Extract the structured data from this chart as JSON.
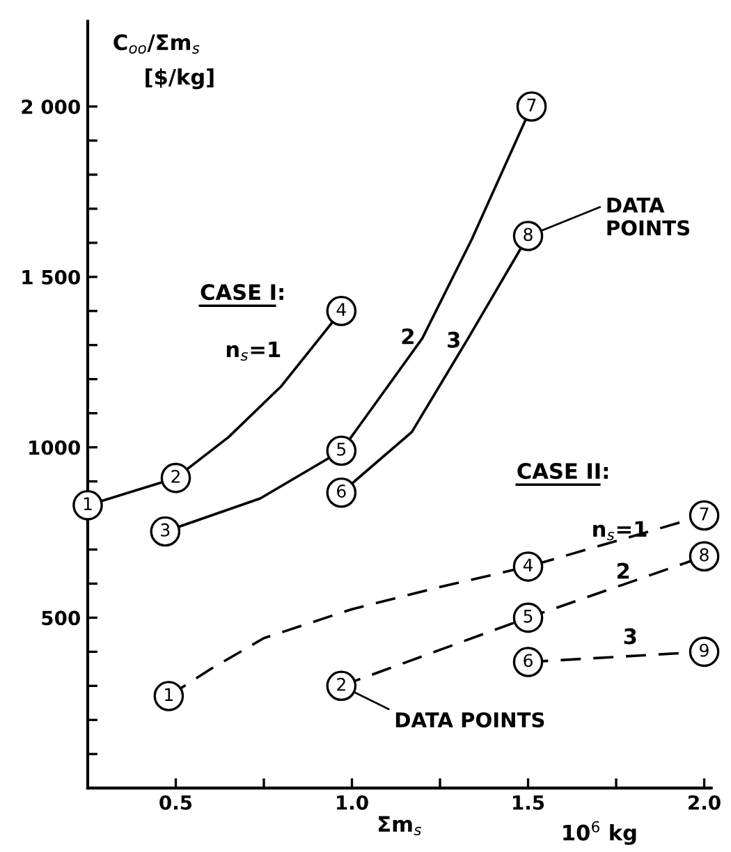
{
  "chart_data": {
    "type": "line",
    "ylabel": "C$_{oo}$/Σm$_{s}$",
    "xlabel": "Σm$_{s}$",
    "xlim": [
      0.25,
      2.02
    ],
    "ylim": [
      0,
      2250
    ],
    "xticks": [
      0.5,
      {
        "value": 0.75,
        "label": null
      },
      {
        "value": 1,
        "label": "1.0"
      },
      {
        "value": 1.25,
        "label": null
      },
      1.5,
      {
        "value": 1.75,
        "label": null
      },
      {
        "value": 2,
        "label": "2.0"
      }
    ],
    "yticks": [
      {
        "value": 100,
        "label": null
      },
      {
        "value": 200,
        "label": null
      },
      {
        "value": 300,
        "label": null
      },
      {
        "value": 400,
        "label": null
      },
      500,
      {
        "value": 600,
        "label": null
      },
      {
        "value": 700,
        "label": null
      },
      {
        "value": 800,
        "label": null
      },
      {
        "value": 900,
        "label": null
      },
      1000,
      {
        "value": 1100,
        "label": null
      },
      {
        "value": 1200,
        "label": null
      },
      {
        "value": 1300,
        "label": null
      },
      {
        "value": 1400,
        "label": null
      },
      {
        "value": 1500,
        "label": "1 500"
      },
      {
        "value": 1600,
        "label": null
      },
      {
        "value": 1700,
        "label": null
      },
      {
        "value": 1800,
        "label": null
      },
      {
        "value": 1900,
        "label": null
      },
      {
        "value": 2000,
        "label": "2 000"
      }
    ],
    "grid": false,
    "legend": false,
    "series": [
      {
        "name": "n$_{s}$=1",
        "color": "#000000",
        "line_style": "solid",
        "marker": "none",
        "x": [
          0.25,
          0.5,
          0.65,
          0.8,
          0.97
        ],
        "values": [
          830,
          910,
          1030,
          1180,
          1400
        ]
      },
      {
        "name": "2",
        "color": "#000000",
        "line_style": "solid",
        "marker": "none",
        "x": [
          0.47,
          0.74,
          0.97,
          1.2,
          1.34,
          1.51
        ],
        "values": [
          753,
          850,
          990,
          1320,
          1610,
          2000
        ]
      },
      {
        "name": "3",
        "color": "#000000",
        "line_style": "solid",
        "marker": "none",
        "x": [
          0.97,
          1.17,
          1.33,
          1.5
        ],
        "values": [
          867,
          1045,
          1320,
          1620
        ]
      },
      {
        "name": "n$_{s}$=1",
        "color": "#000000",
        "line_style": "dashed",
        "marker": "none",
        "x": [
          0.48,
          0.6,
          0.75,
          1.0,
          1.25,
          1.5,
          2.0
        ],
        "values": [
          270,
          350,
          440,
          525,
          590,
          650,
          800
        ]
      },
      {
        "name": "2",
        "color": "#000000",
        "line_style": "dashed",
        "marker": "none",
        "x": [
          0.97,
          1.5,
          2.0
        ],
        "values": [
          300,
          500,
          680
        ]
      },
      {
        "name": "3",
        "color": "#000000",
        "line_style": "dashed",
        "marker": "none",
        "x": [
          1.5,
          2.0
        ],
        "values": [
          370,
          400
        ]
      },
      {
        "type": "scatter",
        "color": "#000000",
        "marker": "circle",
        "x": [
          0.25,
          0.5,
          0.97,
          0.47,
          0.97,
          1.51,
          0.97,
          1.5
        ],
        "values": [
          830,
          910,
          1400,
          753,
          990,
          2000,
          867,
          1620
        ]
      },
      {
        "type": "scatter",
        "color": "#000000",
        "marker": "circle",
        "x": [
          0.48,
          1.5,
          2.0,
          0.97,
          1.5,
          2.0,
          1.5,
          2.0
        ],
        "values": [
          270,
          650,
          800,
          300,
          500,
          680,
          370,
          400
        ]
      }
    ],
    "annotations": [
      "1",
      "2",
      "4",
      "3",
      "5",
      "7",
      "6",
      "8",
      "1",
      "4",
      "7",
      "2",
      "5",
      "8",
      "6",
      "9",
      {
        "text": "DATA POINTS",
        "x": 1.5,
        "y": 1620
      },
      {
        "text": "DATA POINTS",
        "x": 0.97,
        "y": 300
      },
      "[$/kg]",
      "CASE I:",
      "CASE II:",
      "10$^{6}$ kg"
    ]
  }
}
